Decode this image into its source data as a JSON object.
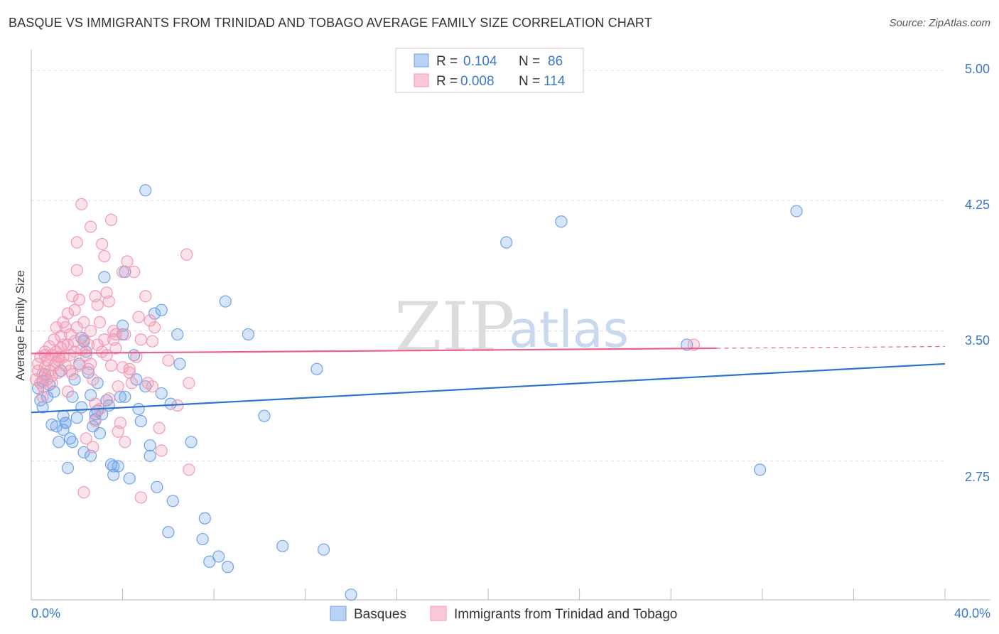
{
  "title": "BASQUE VS IMMIGRANTS FROM TRINIDAD AND TOBAGO AVERAGE FAMILY SIZE CORRELATION CHART",
  "source": "Source: ZipAtlas.com",
  "watermark": {
    "left": "ZIP",
    "right": "atlas"
  },
  "chart_data": {
    "type": "scatter",
    "title": "BASQUE VS IMMIGRANTS FROM TRINIDAD AND TOBAGO AVERAGE FAMILY SIZE CORRELATION CHART",
    "xlabel": "",
    "ylabel": "Average Family Size",
    "xlim": [
      0,
      40
    ],
    "ylim": [
      1.95,
      5.12
    ],
    "x_tick_labels": [
      "0.0%",
      "40.0%"
    ],
    "y_ticks": [
      2.75,
      3.5,
      4.25,
      5.0
    ],
    "y_tick_labels": [
      "2.75",
      "3.50",
      "4.25",
      "5.00"
    ],
    "legend_position": "top-center",
    "series": [
      {
        "name": "Basques",
        "color": "#6fa3e8",
        "line_color": "#2d72cc",
        "R": "0.104",
        "N": "86",
        "trend": {
          "x": [
            0,
            40
          ],
          "y": [
            3.03,
            3.31
          ]
        },
        "points": [
          [
            0.3,
            3.17
          ],
          [
            0.4,
            3.1
          ],
          [
            0.5,
            3.06
          ],
          [
            0.6,
            3.25
          ],
          [
            0.7,
            3.12
          ],
          [
            0.8,
            3.19
          ],
          [
            1.0,
            3.15
          ],
          [
            1.1,
            2.95
          ],
          [
            1.2,
            2.86
          ],
          [
            1.3,
            3.27
          ],
          [
            1.4,
            3.01
          ],
          [
            1.5,
            2.97
          ],
          [
            1.6,
            2.71
          ],
          [
            1.7,
            2.88
          ],
          [
            1.8,
            3.12
          ],
          [
            1.9,
            3.22
          ],
          [
            2.0,
            3.0
          ],
          [
            2.1,
            3.31
          ],
          [
            2.2,
            3.06
          ],
          [
            2.3,
            2.8
          ],
          [
            2.4,
            3.38
          ],
          [
            2.5,
            3.26
          ],
          [
            2.6,
            2.78
          ],
          [
            2.7,
            2.95
          ],
          [
            2.8,
            3.02
          ],
          [
            2.9,
            3.2
          ],
          [
            3.0,
            2.91
          ],
          [
            3.1,
            3.02
          ],
          [
            3.3,
            3.1
          ],
          [
            3.4,
            3.07
          ],
          [
            3.5,
            2.73
          ],
          [
            3.6,
            2.67
          ],
          [
            3.8,
            2.72
          ],
          [
            4.0,
            3.48
          ],
          [
            4.1,
            3.12
          ],
          [
            4.3,
            2.65
          ],
          [
            4.5,
            3.36
          ],
          [
            4.6,
            3.22
          ],
          [
            4.8,
            2.98
          ],
          [
            5.0,
            3.18
          ],
          [
            5.2,
            2.84
          ],
          [
            5.5,
            2.6
          ],
          [
            5.7,
            3.14
          ],
          [
            6.0,
            2.34
          ],
          [
            6.2,
            2.52
          ],
          [
            6.5,
            3.31
          ],
          [
            7.0,
            2.86
          ],
          [
            7.5,
            2.3
          ],
          [
            7.8,
            2.17
          ],
          [
            8.2,
            2.2
          ],
          [
            8.6,
            2.14
          ],
          [
            9.5,
            3.48
          ],
          [
            10.2,
            3.01
          ],
          [
            11.0,
            2.26
          ],
          [
            12.5,
            3.28
          ],
          [
            12.8,
            2.24
          ],
          [
            14.0,
            1.98
          ],
          [
            3.2,
            3.81
          ],
          [
            4.0,
            3.53
          ],
          [
            4.1,
            3.84
          ],
          [
            5.4,
            3.6
          ],
          [
            5.0,
            4.31
          ],
          [
            5.7,
            3.62
          ],
          [
            6.4,
            3.48
          ],
          [
            8.5,
            3.67
          ],
          [
            2.3,
            3.44
          ],
          [
            1.5,
            2.97
          ],
          [
            0.9,
            2.96
          ],
          [
            2.8,
            2.99
          ],
          [
            3.9,
            3.12
          ],
          [
            5.2,
            2.78
          ],
          [
            6.1,
            3.08
          ],
          [
            7.6,
            2.42
          ],
          [
            2.2,
            3.46
          ],
          [
            4.7,
            3.05
          ],
          [
            3.6,
            2.72
          ],
          [
            1.4,
            2.93
          ],
          [
            2.9,
            3.04
          ],
          [
            20.8,
            4.01
          ],
          [
            23.2,
            4.13
          ],
          [
            33.5,
            4.19
          ],
          [
            28.7,
            3.42
          ],
          [
            31.9,
            2.7
          ],
          [
            0.5,
            3.21
          ],
          [
            1.8,
            2.86
          ],
          [
            2.6,
            3.13
          ]
        ]
      },
      {
        "name": "Immigrants from Trinidad and Tobago",
        "color": "#f29ab5",
        "line_color": "#e8608d",
        "R": "0.008",
        "N": "114",
        "trend": {
          "x": [
            0,
            30
          ],
          "y": [
            3.37,
            3.4
          ]
        },
        "trend_dashed": {
          "x": [
            30,
            40
          ],
          "y": [
            3.4,
            3.41
          ]
        },
        "points": [
          [
            0.2,
            3.22
          ],
          [
            0.3,
            3.27
          ],
          [
            0.3,
            3.31
          ],
          [
            0.4,
            3.2
          ],
          [
            0.4,
            3.35
          ],
          [
            0.5,
            3.25
          ],
          [
            0.5,
            3.18
          ],
          [
            0.6,
            3.29
          ],
          [
            0.6,
            3.38
          ],
          [
            0.7,
            3.22
          ],
          [
            0.7,
            3.33
          ],
          [
            0.8,
            3.27
          ],
          [
            0.8,
            3.41
          ],
          [
            0.9,
            3.24
          ],
          [
            0.9,
            3.36
          ],
          [
            1.0,
            3.3
          ],
          [
            1.0,
            3.45
          ],
          [
            1.1,
            3.38
          ],
          [
            1.1,
            3.52
          ],
          [
            1.2,
            3.33
          ],
          [
            1.2,
            3.26
          ],
          [
            1.3,
            3.47
          ],
          [
            1.3,
            3.4
          ],
          [
            1.4,
            3.35
          ],
          [
            1.4,
            3.55
          ],
          [
            1.5,
            3.52
          ],
          [
            1.5,
            3.3
          ],
          [
            1.6,
            3.42
          ],
          [
            1.6,
            3.6
          ],
          [
            1.7,
            3.48
          ],
          [
            1.7,
            3.36
          ],
          [
            1.8,
            3.7
          ],
          [
            1.8,
            3.25
          ],
          [
            1.9,
            3.38
          ],
          [
            1.9,
            3.62
          ],
          [
            2.0,
            3.52
          ],
          [
            2.0,
            3.85
          ],
          [
            2.0,
            4.01
          ],
          [
            2.1,
            3.68
          ],
          [
            2.1,
            3.3
          ],
          [
            2.2,
            4.23
          ],
          [
            2.3,
            3.45
          ],
          [
            2.3,
            3.55
          ],
          [
            2.4,
            3.36
          ],
          [
            2.5,
            3.28
          ],
          [
            2.6,
            4.1
          ],
          [
            2.6,
            3.5
          ],
          [
            2.7,
            3.22
          ],
          [
            2.8,
            3.7
          ],
          [
            2.8,
            2.98
          ],
          [
            2.9,
            3.42
          ],
          [
            3.0,
            3.55
          ],
          [
            3.0,
            3.05
          ],
          [
            3.1,
            4.0
          ],
          [
            3.1,
            3.38
          ],
          [
            3.2,
            3.93
          ],
          [
            3.2,
            3.45
          ],
          [
            3.3,
            3.72
          ],
          [
            3.4,
            3.67
          ],
          [
            3.5,
            4.14
          ],
          [
            3.5,
            3.3
          ],
          [
            3.6,
            3.5
          ],
          [
            3.7,
            3.4
          ],
          [
            3.8,
            3.18
          ],
          [
            3.9,
            2.97
          ],
          [
            4.0,
            3.84
          ],
          [
            4.1,
            3.48
          ],
          [
            4.1,
            2.86
          ],
          [
            4.2,
            3.9
          ],
          [
            4.3,
            3.28
          ],
          [
            4.4,
            3.2
          ],
          [
            4.5,
            3.84
          ],
          [
            4.6,
            3.35
          ],
          [
            4.7,
            3.58
          ],
          [
            4.8,
            3.45
          ],
          [
            5.0,
            3.7
          ],
          [
            5.1,
            3.2
          ],
          [
            5.2,
            3.56
          ],
          [
            5.3,
            3.44
          ],
          [
            5.6,
            2.94
          ],
          [
            5.7,
            2.81
          ],
          [
            6.0,
            3.33
          ],
          [
            6.4,
            3.07
          ],
          [
            6.8,
            3.94
          ],
          [
            6.9,
            3.2
          ],
          [
            6.9,
            2.7
          ],
          [
            2.3,
            2.57
          ],
          [
            2.7,
            2.83
          ],
          [
            2.4,
            2.88
          ],
          [
            3.8,
            2.92
          ],
          [
            4.3,
            3.26
          ],
          [
            4.8,
            2.54
          ],
          [
            5.3,
            3.18
          ],
          [
            3.4,
            3.11
          ],
          [
            2.8,
            3.08
          ],
          [
            3.6,
            3.45
          ],
          [
            2.5,
            3.42
          ],
          [
            1.6,
            3.15
          ],
          [
            0.9,
            3.2
          ],
          [
            0.5,
            3.12
          ],
          [
            1.2,
            3.35
          ],
          [
            1.9,
            3.44
          ],
          [
            2.6,
            3.31
          ],
          [
            3.3,
            3.36
          ],
          [
            4.0,
            3.29
          ],
          [
            5.4,
            3.52
          ],
          [
            2.9,
            3.65
          ],
          [
            3.7,
            3.48
          ],
          [
            1.4,
            3.42
          ],
          [
            29.0,
            3.42
          ],
          [
            0.6,
            3.36
          ],
          [
            1.1,
            3.32
          ],
          [
            1.7,
            3.27
          ],
          [
            2.2,
            3.39
          ]
        ]
      }
    ]
  }
}
